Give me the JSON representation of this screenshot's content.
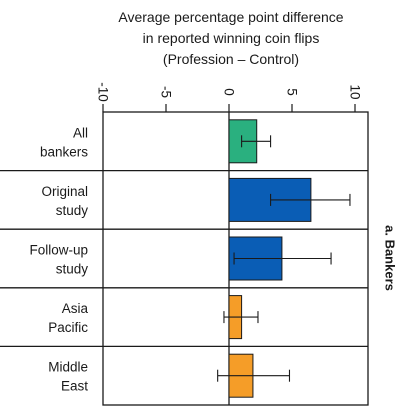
{
  "chart_data": {
    "type": "bar",
    "orientation": "horizontal",
    "title_lines": [
      "Average percentage point difference",
      "in reported winning coin flips",
      "(Profession – Control)"
    ],
    "panel_label": "a. Bankers",
    "xlim": [
      -10,
      10
    ],
    "xticks": [
      "-10",
      "-5",
      "0",
      "5",
      "10"
    ],
    "tick_values": [
      -10,
      -5,
      0,
      5,
      10
    ],
    "categories": [
      [
        "All",
        "bankers"
      ],
      [
        "Original",
        "study"
      ],
      [
        "Follow-up",
        "study"
      ],
      [
        "Asia",
        "Pacific"
      ],
      [
        "Middle",
        "East"
      ]
    ],
    "values": [
      2.2,
      6.5,
      4.2,
      1.0,
      1.9
    ],
    "error_low": [
      1.0,
      3.3,
      0.4,
      -0.4,
      -0.9
    ],
    "error_high": [
      3.3,
      9.6,
      8.1,
      2.3,
      4.8
    ],
    "colors": [
      "#2ab07f",
      "#0a5db5",
      "#0a5db5",
      "#f59d28",
      "#f59d28"
    ],
    "grid": false
  }
}
